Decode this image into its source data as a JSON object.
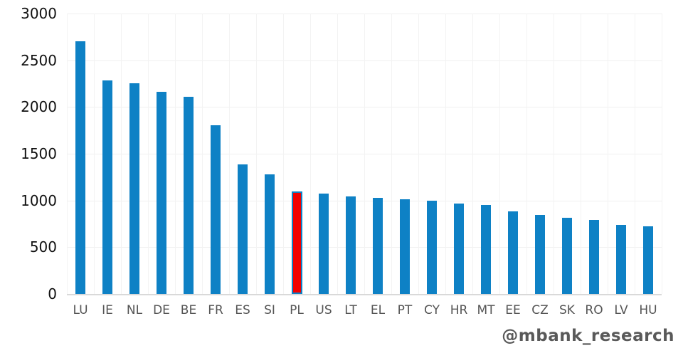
{
  "chart_data": {
    "type": "bar",
    "categories": [
      "LU",
      "IE",
      "NL",
      "DE",
      "BE",
      "FR",
      "ES",
      "SI",
      "PL",
      "US",
      "LT",
      "EL",
      "PT",
      "CY",
      "HR",
      "MT",
      "EE",
      "CZ",
      "SK",
      "RO",
      "LV",
      "HU"
    ],
    "values": [
      2700,
      2285,
      2250,
      2165,
      2110,
      1805,
      1385,
      1280,
      1100,
      1075,
      1040,
      1025,
      1010,
      995,
      965,
      950,
      885,
      845,
      815,
      795,
      740,
      725
    ],
    "title": "",
    "xlabel": "",
    "ylabel": "",
    "ylim": [
      0,
      3000
    ],
    "yticks": [
      0,
      500,
      1000,
      1500,
      2000,
      2500,
      3000
    ],
    "grid": "on",
    "legend": "none",
    "highlight_category": "PL",
    "colors": {
      "bar": "#0e81c5",
      "highlight_fill": "#f20000",
      "highlight_border": "#0e81c5",
      "axis_line": "#d9d9d9",
      "h_gridline": "#f0f0f0",
      "v_gridline": "#f3f3f3",
      "y_tick_text": "#111111",
      "x_tick_text": "#555555"
    }
  },
  "watermark": {
    "text": "@mbank_research",
    "color": "#595959"
  }
}
